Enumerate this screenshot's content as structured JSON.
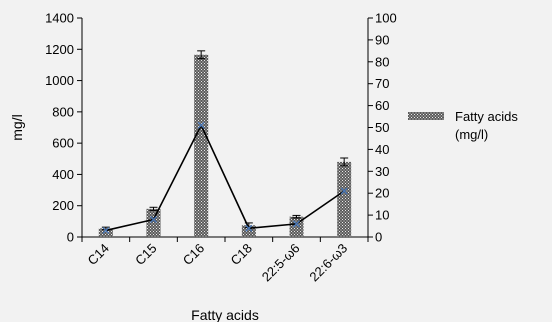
{
  "chart_data": {
    "type": "bar",
    "categories": [
      "C14",
      "C15",
      "C16",
      "C18",
      "22:5-ω6",
      "22:6-ω3"
    ],
    "series": [
      {
        "name": "Fatty acids (mg/l)",
        "type": "bar",
        "axis": "left",
        "values": [
          55,
          180,
          1165,
          75,
          130,
          480
        ],
        "error": [
          8,
          10,
          25,
          15,
          8,
          25
        ]
      },
      {
        "type": "line",
        "axis": "right",
        "values": [
          3,
          8,
          51,
          4,
          6,
          21
        ]
      }
    ],
    "title": "",
    "xlabel": "Fatty acids",
    "ylabel": "mg/l",
    "ylim": [
      0,
      1400
    ],
    "yticks": [
      0,
      200,
      400,
      600,
      800,
      1000,
      1200,
      1400
    ],
    "y2lim": [
      0,
      100
    ],
    "y2ticks": [
      0,
      10,
      20,
      30,
      40,
      50,
      60,
      70,
      80,
      90,
      100
    ],
    "legend": {
      "position": "right",
      "label_lines": [
        "Fatty acids",
        "(mg/l)"
      ]
    },
    "grid": false,
    "colors": {
      "background": "#f2f2f2",
      "bar_fill": "#5a5a5a",
      "bar_hatch": "#e8e8e8",
      "line": "#000000",
      "marker": "#4a78b8"
    }
  }
}
